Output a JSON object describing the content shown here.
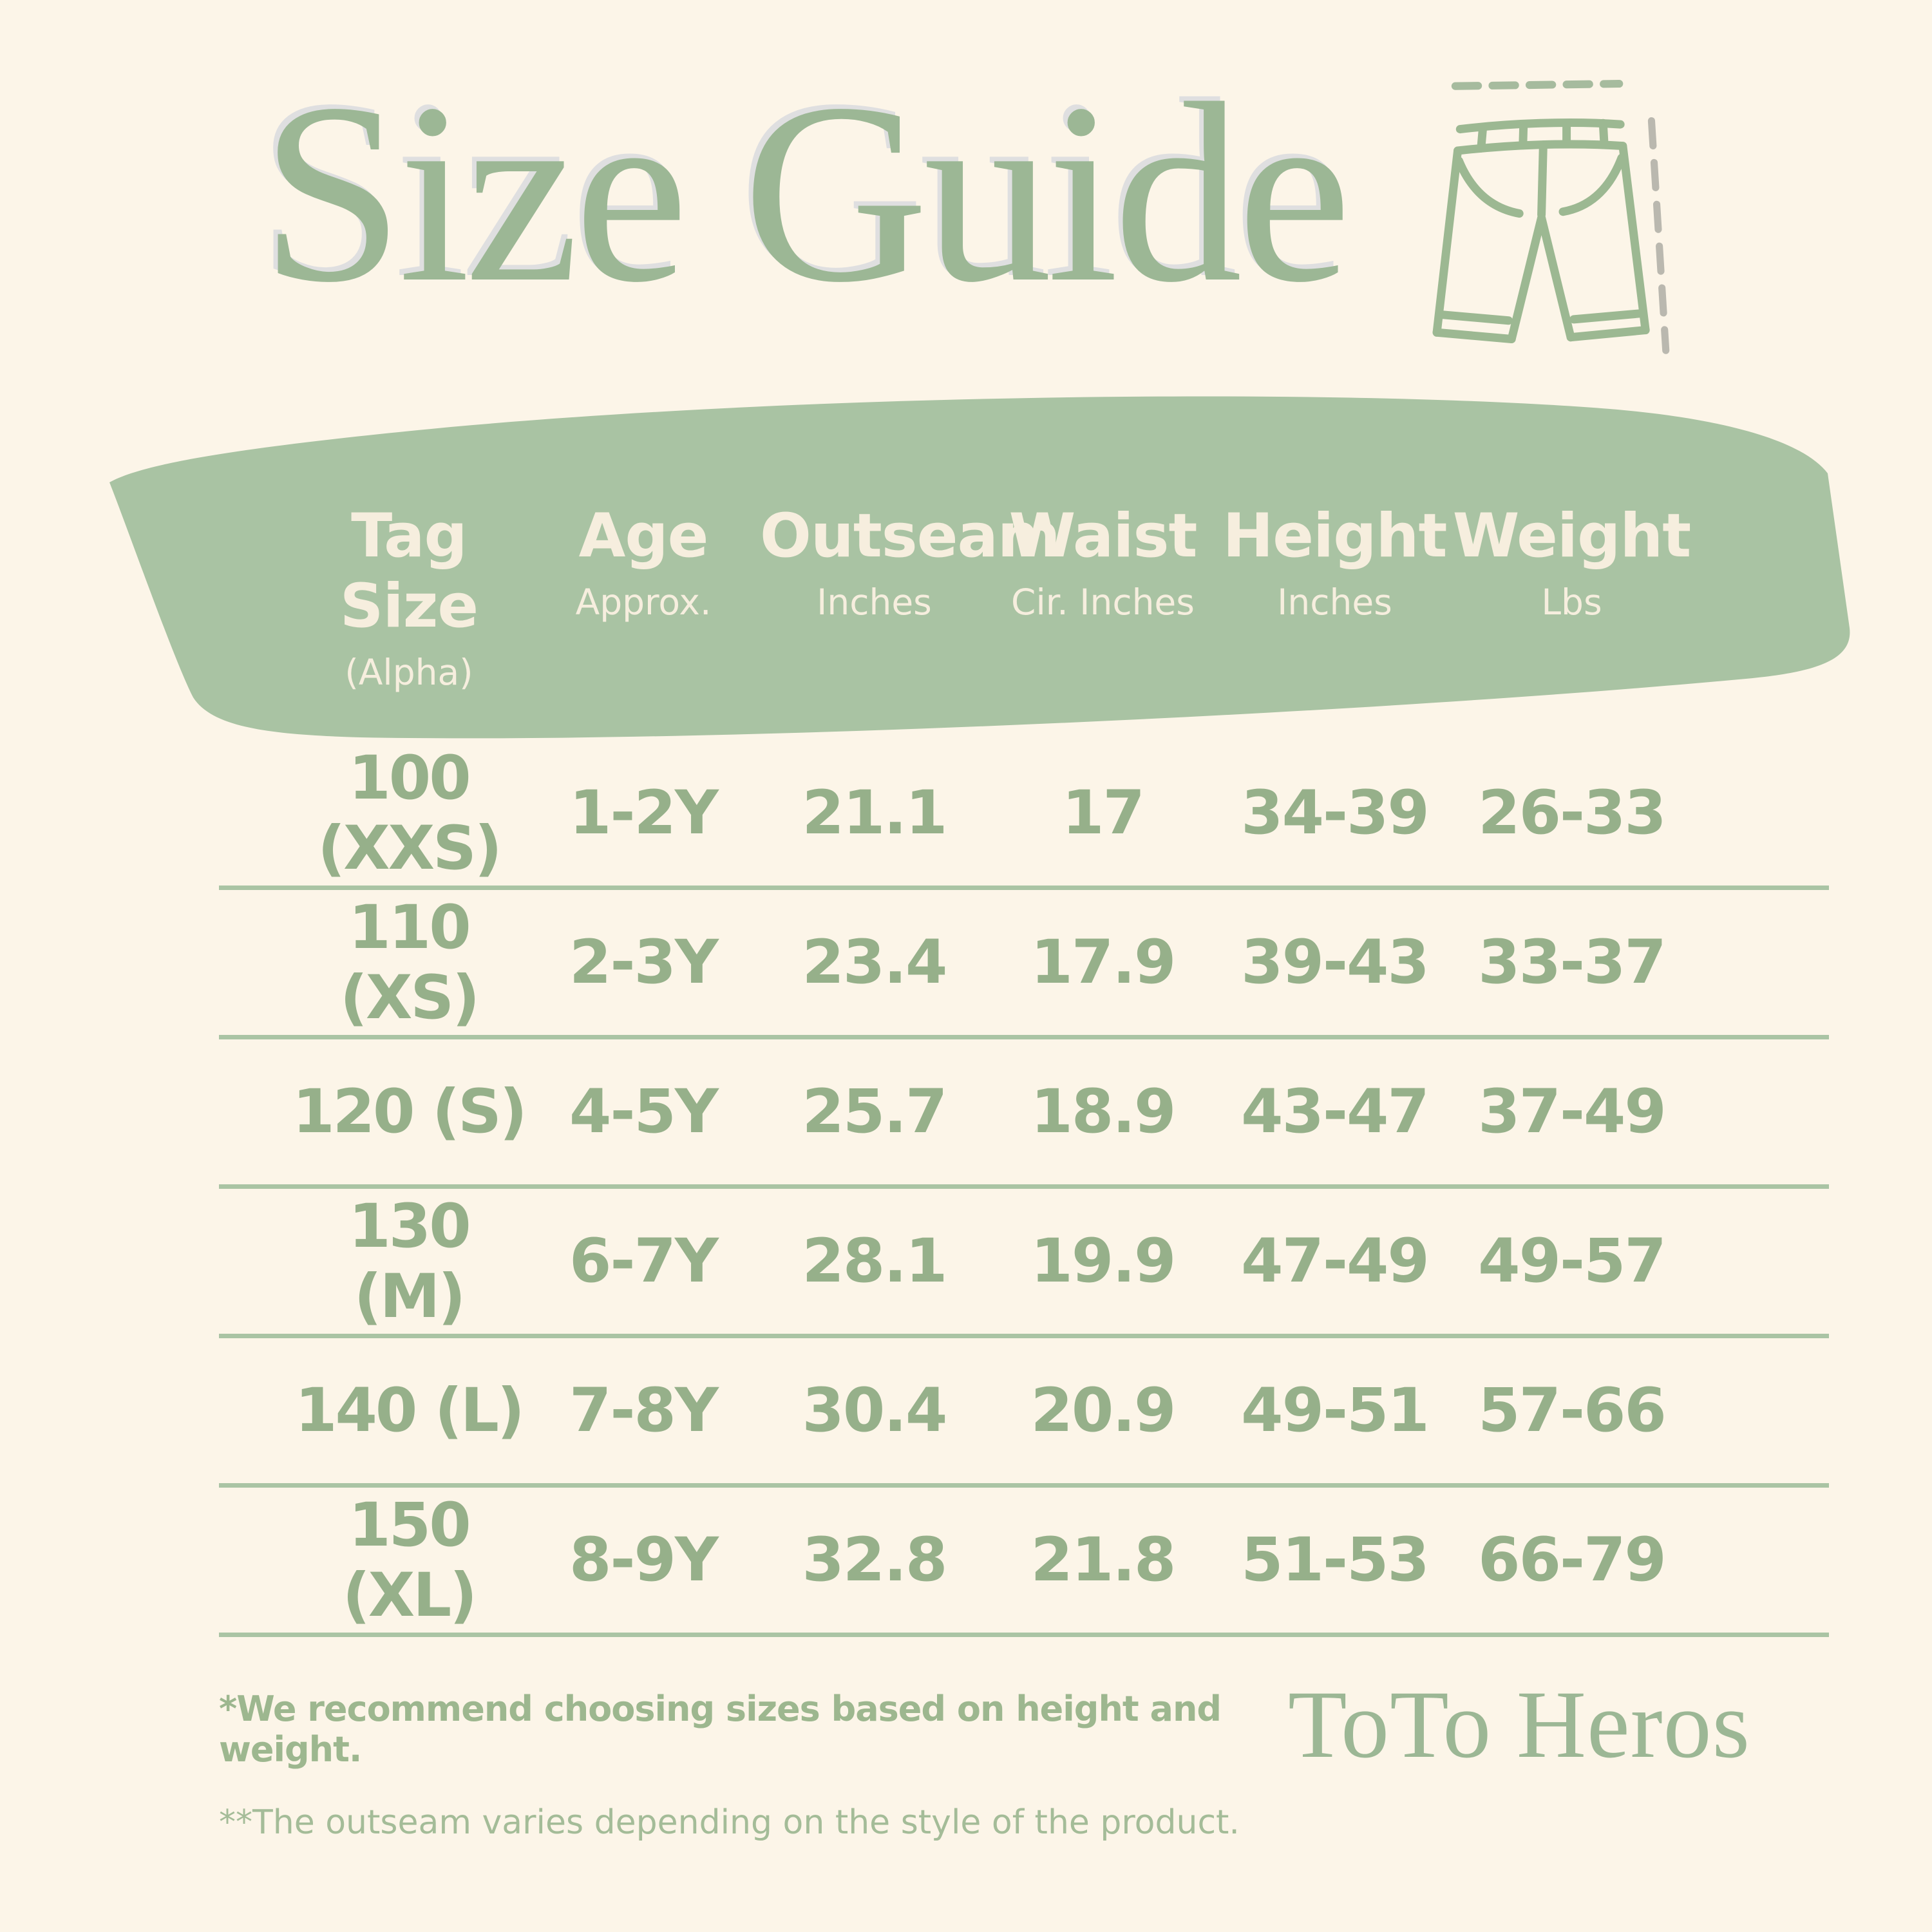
{
  "header": {
    "title": "Size Guide"
  },
  "icons": {
    "pants_icon": "pants-outline-with-outseam-measure-dashes"
  },
  "table": {
    "columns": [
      {
        "label": "Tag Size",
        "sublabel": "(Alpha)"
      },
      {
        "label": "Age",
        "sublabel": "Approx."
      },
      {
        "label": "Outseam",
        "sublabel": "Inches"
      },
      {
        "label": "Waist",
        "sublabel": "Cir. Inches"
      },
      {
        "label": "Height",
        "sublabel": "Inches"
      },
      {
        "label": "Weight",
        "sublabel": "Lbs"
      }
    ],
    "rows": [
      [
        "100 (XXS)",
        "1-2Y",
        "21.1",
        "17",
        "34-39",
        "26-33"
      ],
      [
        "110 (XS)",
        "2-3Y",
        "23.4",
        "17.9",
        "39-43",
        "33-37"
      ],
      [
        "120 (S)",
        "4-5Y",
        "25.7",
        "18.9",
        "43-47",
        "37-49"
      ],
      [
        "130 (M)",
        "6-7Y",
        "28.1",
        "19.9",
        "47-49",
        "49-57"
      ],
      [
        "140 (L)",
        "7-8Y",
        "30.4",
        "20.9",
        "49-51",
        "57-66"
      ],
      [
        "150 (XL)",
        "8-9Y",
        "32.8",
        "21.8",
        "51-53",
        "66-79"
      ]
    ]
  },
  "footnotes": {
    "first": "*We recommend choosing sizes based on height and weight.",
    "second": "**The outseam varies depending on the style of the product."
  },
  "brand": {
    "name": "ToTo Heros"
  },
  "colors": {
    "background": "#fcf5e8",
    "banner": "#a9c3a3",
    "banner_text": "#f6eede",
    "table_text": "#96b08a",
    "divider": "#aac4a4",
    "title": "#9cb795",
    "footnote_bold": "#9db78f",
    "footnote_regular": "#a4bc98",
    "measure_dash_gray": "#bab8af"
  }
}
